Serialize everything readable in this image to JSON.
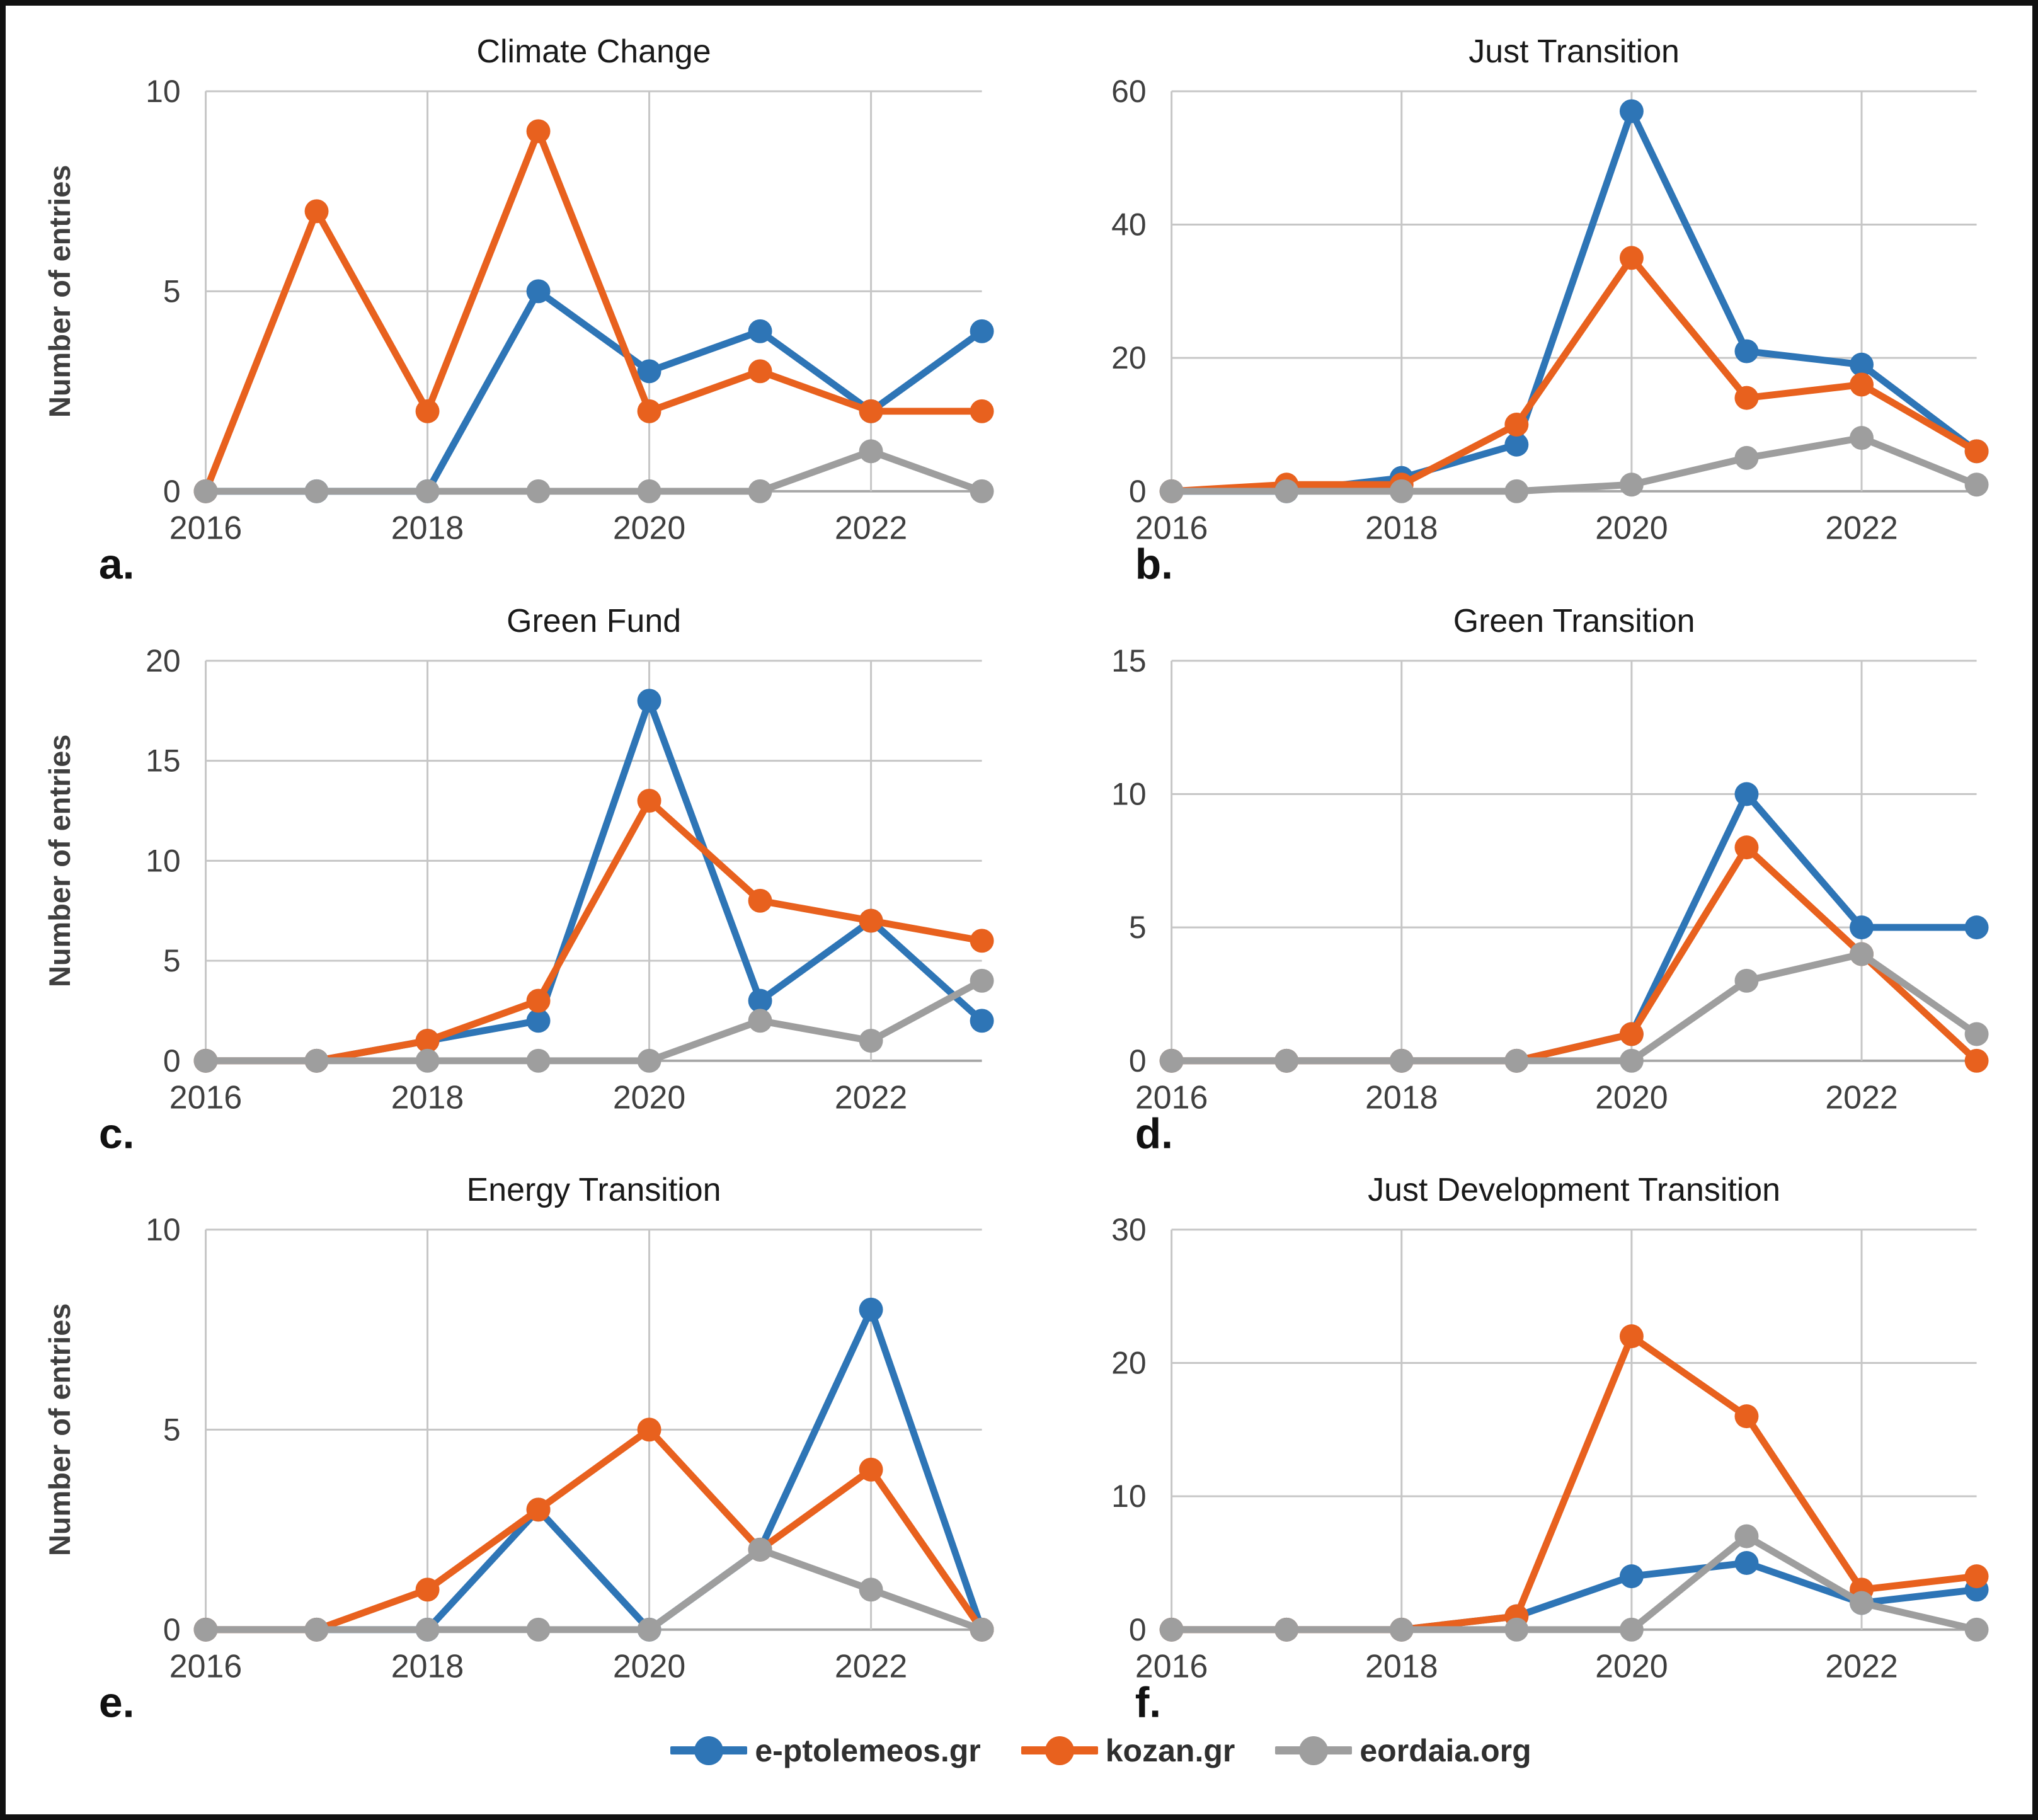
{
  "figure": {
    "legend": {
      "items": [
        {
          "label": "e-ptolemeos.gr",
          "color": "#2E75B6"
        },
        {
          "label": "kozan.gr",
          "color": "#E8611E"
        },
        {
          "label": "eordaia.org",
          "color": "#9E9E9E"
        }
      ]
    }
  },
  "chart_data": [
    {
      "type": "line",
      "title": "Climate Change",
      "letter": "a.",
      "ylabel": "Number of entries",
      "xlabel": "",
      "x": [
        2016,
        2017,
        2018,
        2019,
        2020,
        2021,
        2022,
        2023
      ],
      "xticks": [
        2016,
        2018,
        2020,
        2022
      ],
      "ylim": [
        0,
        10
      ],
      "yticks": [
        0,
        5,
        10
      ],
      "grid": true,
      "legend_position": "bottom-shared",
      "series": [
        {
          "name": "e-ptolemeos.gr",
          "color": "#2E75B6",
          "values": [
            0,
            0,
            0,
            5,
            3,
            4,
            2,
            4
          ]
        },
        {
          "name": "kozan.gr",
          "color": "#E8611E",
          "values": [
            0,
            7,
            2,
            9,
            2,
            3,
            2,
            2
          ]
        },
        {
          "name": "eordaia.org",
          "color": "#9E9E9E",
          "values": [
            0,
            0,
            0,
            0,
            0,
            0,
            1,
            0
          ]
        }
      ]
    },
    {
      "type": "line",
      "title": "Just Transition",
      "letter": "b.",
      "ylabel": "",
      "xlabel": "",
      "x": [
        2016,
        2017,
        2018,
        2019,
        2020,
        2021,
        2022,
        2023
      ],
      "xticks": [
        2016,
        2018,
        2020,
        2022
      ],
      "ylim": [
        0,
        60
      ],
      "yticks": [
        0,
        20,
        40,
        60
      ],
      "grid": true,
      "legend_position": "bottom-shared",
      "series": [
        {
          "name": "e-ptolemeos.gr",
          "color": "#2E75B6",
          "values": [
            0,
            0,
            2,
            7,
            57,
            21,
            19,
            6
          ]
        },
        {
          "name": "kozan.gr",
          "color": "#E8611E",
          "values": [
            0,
            1,
            1,
            10,
            35,
            14,
            16,
            6
          ]
        },
        {
          "name": "eordaia.org",
          "color": "#9E9E9E",
          "values": [
            0,
            0,
            0,
            0,
            1,
            5,
            8,
            1
          ]
        }
      ]
    },
    {
      "type": "line",
      "title": "Green Fund",
      "letter": "c.",
      "ylabel": "Number of entries",
      "xlabel": "",
      "x": [
        2016,
        2017,
        2018,
        2019,
        2020,
        2021,
        2022,
        2023
      ],
      "xticks": [
        2016,
        2018,
        2020,
        2022
      ],
      "ylim": [
        0,
        20
      ],
      "yticks": [
        0,
        5,
        10,
        15,
        20
      ],
      "grid": true,
      "legend_position": "bottom-shared",
      "series": [
        {
          "name": "e-ptolemeos.gr",
          "color": "#2E75B6",
          "values": [
            0,
            0,
            1,
            2,
            18,
            3,
            7,
            2
          ]
        },
        {
          "name": "kozan.gr",
          "color": "#E8611E",
          "values": [
            0,
            0,
            1,
            3,
            13,
            8,
            7,
            6
          ]
        },
        {
          "name": "eordaia.org",
          "color": "#9E9E9E",
          "values": [
            0,
            0,
            0,
            0,
            0,
            2,
            1,
            4
          ]
        }
      ]
    },
    {
      "type": "line",
      "title": "Green Transition",
      "letter": "d.",
      "ylabel": "",
      "xlabel": "",
      "x": [
        2016,
        2017,
        2018,
        2019,
        2020,
        2021,
        2022,
        2023
      ],
      "xticks": [
        2016,
        2018,
        2020,
        2022
      ],
      "ylim": [
        0,
        15
      ],
      "yticks": [
        0,
        5,
        10,
        15
      ],
      "grid": true,
      "legend_position": "bottom-shared",
      "series": [
        {
          "name": "e-ptolemeos.gr",
          "color": "#2E75B6",
          "values": [
            0,
            0,
            0,
            0,
            1,
            10,
            5,
            5
          ]
        },
        {
          "name": "kozan.gr",
          "color": "#E8611E",
          "values": [
            0,
            0,
            0,
            0,
            1,
            8,
            4,
            0
          ]
        },
        {
          "name": "eordaia.org",
          "color": "#9E9E9E",
          "values": [
            0,
            0,
            0,
            0,
            0,
            3,
            4,
            1
          ]
        }
      ]
    },
    {
      "type": "line",
      "title": "Energy Transition",
      "letter": "e.",
      "ylabel": "Number of entries",
      "xlabel": "",
      "x": [
        2016,
        2017,
        2018,
        2019,
        2020,
        2021,
        2022,
        2023
      ],
      "xticks": [
        2016,
        2018,
        2020,
        2022
      ],
      "ylim": [
        0,
        10
      ],
      "yticks": [
        0,
        5,
        10
      ],
      "grid": true,
      "legend_position": "bottom-shared",
      "series": [
        {
          "name": "e-ptolemeos.gr",
          "color": "#2E75B6",
          "values": [
            0,
            0,
            0,
            3,
            0,
            2,
            8,
            0
          ]
        },
        {
          "name": "kozan.gr",
          "color": "#E8611E",
          "values": [
            0,
            0,
            1,
            3,
            5,
            2,
            4,
            0
          ]
        },
        {
          "name": "eordaia.org",
          "color": "#9E9E9E",
          "values": [
            0,
            0,
            0,
            0,
            0,
            2,
            1,
            0
          ]
        }
      ]
    },
    {
      "type": "line",
      "title": "Just Development Transition",
      "letter": "f.",
      "ylabel": "",
      "xlabel": "",
      "x": [
        2016,
        2017,
        2018,
        2019,
        2020,
        2021,
        2022,
        2023
      ],
      "xticks": [
        2016,
        2018,
        2020,
        2022
      ],
      "ylim": [
        0,
        30
      ],
      "yticks": [
        0,
        10,
        20,
        30
      ],
      "grid": true,
      "legend_position": "bottom-shared",
      "series": [
        {
          "name": "e-ptolemeos.gr",
          "color": "#2E75B6",
          "values": [
            0,
            0,
            0,
            1,
            4,
            5,
            2,
            3
          ]
        },
        {
          "name": "kozan.gr",
          "color": "#E8611E",
          "values": [
            0,
            0,
            0,
            1,
            22,
            16,
            3,
            4
          ]
        },
        {
          "name": "eordaia.org",
          "color": "#9E9E9E",
          "values": [
            0,
            0,
            0,
            0,
            0,
            7,
            2,
            0
          ]
        }
      ]
    }
  ]
}
